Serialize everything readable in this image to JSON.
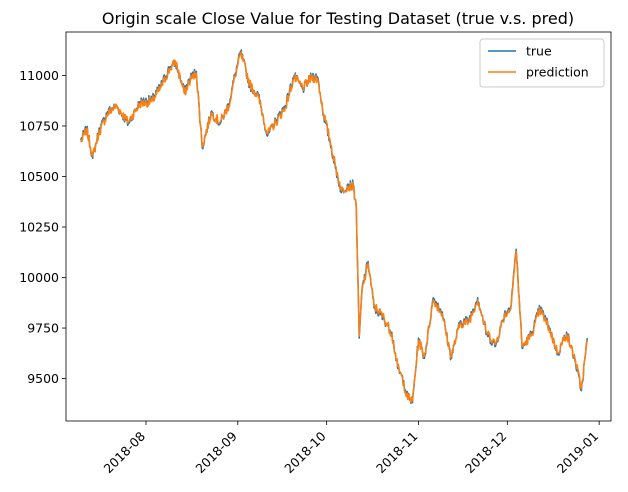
{
  "chart_data": {
    "type": "line",
    "title": "Origin scale Close Value for Testing Dataset (true v.s. pred)",
    "xlabel": "",
    "ylabel": "",
    "x_range": [
      "2018-07-05",
      "2019-01-05"
    ],
    "ylim": [
      9290,
      11215
    ],
    "yticks": [
      9500,
      9750,
      10000,
      10250,
      10500,
      10750,
      11000
    ],
    "xticks": [
      "2018-08",
      "2018-09",
      "2018-10",
      "2018-11",
      "2018-12",
      "2019-01"
    ],
    "xtick_dates": [
      "2018-08-01",
      "2018-09-01",
      "2018-10-01",
      "2018-11-01",
      "2018-12-01",
      "2019-01-01"
    ],
    "grid": false,
    "legend_position": "top-right",
    "colors": {
      "true": "#1f77b4",
      "prediction": "#ff7f0e"
    },
    "x": [
      "2018-07-10",
      "2018-07-12",
      "2018-07-14",
      "2018-07-16",
      "2018-07-19",
      "2018-07-22",
      "2018-07-26",
      "2018-07-30",
      "2018-08-03",
      "2018-08-06",
      "2018-08-09",
      "2018-08-11",
      "2018-08-14",
      "2018-08-16",
      "2018-08-18",
      "2018-08-20",
      "2018-08-23",
      "2018-08-26",
      "2018-08-29",
      "2018-08-31",
      "2018-09-02",
      "2018-09-05",
      "2018-09-08",
      "2018-09-11",
      "2018-09-14",
      "2018-09-17",
      "2018-09-20",
      "2018-09-23",
      "2018-09-26",
      "2018-09-28",
      "2018-09-30",
      "2018-10-02",
      "2018-10-04",
      "2018-10-06",
      "2018-10-08",
      "2018-10-10",
      "2018-10-11",
      "2018-10-12",
      "2018-10-13",
      "2018-10-15",
      "2018-10-17",
      "2018-10-20",
      "2018-10-23",
      "2018-10-25",
      "2018-10-27",
      "2018-10-28",
      "2018-10-30",
      "2018-11-01",
      "2018-11-03",
      "2018-11-06",
      "2018-11-09",
      "2018-11-12",
      "2018-11-15",
      "2018-11-18",
      "2018-11-21",
      "2018-11-24",
      "2018-11-27",
      "2018-11-30",
      "2018-12-02",
      "2018-12-04",
      "2018-12-06",
      "2018-12-09",
      "2018-12-12",
      "2018-12-15",
      "2018-12-18",
      "2018-12-21",
      "2018-12-24",
      "2018-12-26",
      "2018-12-28"
    ],
    "series": [
      {
        "name": "true",
        "values": [
          10680,
          10740,
          10590,
          10720,
          10820,
          10850,
          10760,
          10870,
          10880,
          10950,
          11040,
          11060,
          10920,
          10990,
          11020,
          10640,
          10820,
          10760,
          10860,
          11000,
          11120,
          10950,
          10900,
          10700,
          10780,
          10850,
          11000,
          10930,
          11000,
          10990,
          10800,
          10680,
          10540,
          10420,
          10460,
          10460,
          10340,
          9700,
          9950,
          10080,
          9850,
          9800,
          9730,
          9550,
          9490,
          9420,
          9380,
          9700,
          9600,
          9900,
          9830,
          9600,
          9780,
          9790,
          9900,
          9720,
          9660,
          9820,
          9850,
          10140,
          9650,
          9720,
          9850,
          9760,
          9620,
          9730,
          9580,
          9440,
          9700
        ]
      },
      {
        "name": "prediction",
        "values": [
          10670,
          10730,
          10600,
          10710,
          10810,
          10850,
          10770,
          10860,
          10870,
          10940,
          11030,
          11070,
          10910,
          10980,
          11010,
          10650,
          10810,
          10770,
          10850,
          10990,
          11110,
          10960,
          10890,
          10710,
          10770,
          10840,
          10990,
          10940,
          10990,
          10980,
          10810,
          10690,
          10550,
          10430,
          10450,
          10450,
          10350,
          9710,
          9940,
          10070,
          9860,
          9810,
          9720,
          9560,
          9480,
          9410,
          9390,
          9690,
          9610,
          9890,
          9820,
          9610,
          9770,
          9780,
          9890,
          9730,
          9670,
          9810,
          9840,
          10130,
          9660,
          9710,
          9840,
          9750,
          9630,
          9720,
          9590,
          9450,
          9690
        ]
      }
    ]
  },
  "legend": {
    "true_label": "true",
    "prediction_label": "prediction"
  }
}
